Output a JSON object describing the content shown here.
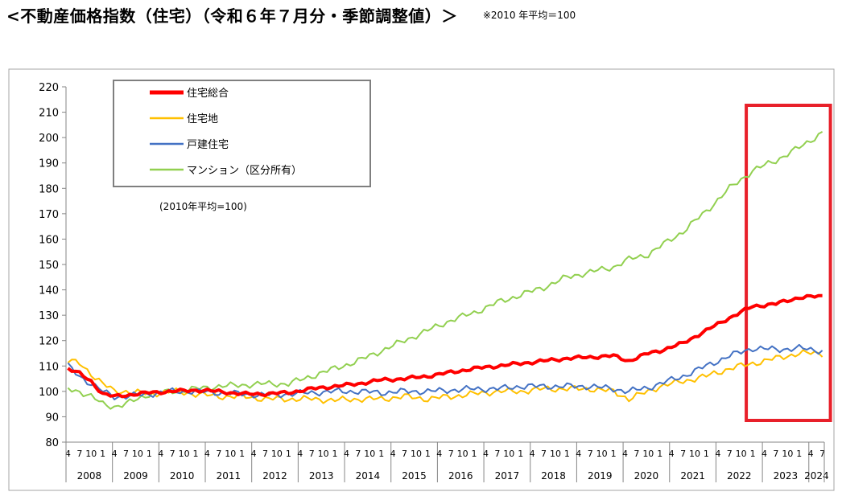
{
  "header": {
    "title": "<不動産価格指数（住宅）（令和６年７月分・季節調整値）＞",
    "base_note": "※2010 年平均＝100"
  },
  "chart_data": {
    "type": "line",
    "title": "<不動産価格指数（住宅）（令和６年７月分・季節調整値）＞",
    "note": "(2010年平均=100)",
    "xlabel": "",
    "ylabel": "",
    "ylim": [
      80,
      220
    ],
    "yticks": [
      80,
      90,
      100,
      110,
      120,
      130,
      140,
      150,
      160,
      170,
      180,
      190,
      200,
      210,
      220
    ],
    "x_start": "2008-04",
    "x_end": "2024-07",
    "month_tick_labels": [
      "4",
      "7",
      "10",
      "1"
    ],
    "years": [
      "2008",
      "2009",
      "2010",
      "2011",
      "2012",
      "2013",
      "2014",
      "2015",
      "2016",
      "2017",
      "2018",
      "2019",
      "2020",
      "2021",
      "2022",
      "2023",
      "2024"
    ],
    "grid": false,
    "legend_position": "top-left",
    "highlight": {
      "from": "2023-01",
      "to": "2024-07",
      "color": "#e8202a"
    },
    "series": [
      {
        "name": "住宅総合",
        "color": "#ff0000",
        "width": 4,
        "keypoints": [
          [
            "2008-04",
            109
          ],
          [
            "2008-07",
            107
          ],
          [
            "2008-10",
            104
          ],
          [
            "2009-01",
            99
          ],
          [
            "2009-04",
            98
          ],
          [
            "2009-07",
            98.5
          ],
          [
            "2010-01",
            99.5
          ],
          [
            "2010-07",
            100
          ],
          [
            "2011-01",
            100.5
          ],
          [
            "2011-07",
            100
          ],
          [
            "2012-01",
            99
          ],
          [
            "2012-07",
            99
          ],
          [
            "2013-01",
            99.5
          ],
          [
            "2013-07",
            101
          ],
          [
            "2014-01",
            102
          ],
          [
            "2014-07",
            103
          ],
          [
            "2015-01",
            104.5
          ],
          [
            "2015-07",
            105
          ],
          [
            "2016-01",
            106
          ],
          [
            "2016-07",
            107.5
          ],
          [
            "2017-01",
            109
          ],
          [
            "2017-07",
            110
          ],
          [
            "2018-01",
            111
          ],
          [
            "2018-07",
            112
          ],
          [
            "2019-01",
            113
          ],
          [
            "2019-07",
            113.5
          ],
          [
            "2020-01",
            114
          ],
          [
            "2020-05",
            112
          ],
          [
            "2020-10",
            115
          ],
          [
            "2021-01",
            116
          ],
          [
            "2021-07",
            119
          ],
          [
            "2022-01",
            124
          ],
          [
            "2022-07",
            129
          ],
          [
            "2023-01",
            133.5
          ],
          [
            "2023-07",
            134.5
          ],
          [
            "2024-01",
            137
          ],
          [
            "2024-07",
            137.5
          ]
        ]
      },
      {
        "name": "住宅地",
        "color": "#ffc000",
        "width": 2,
        "keypoints": [
          [
            "2008-04",
            112
          ],
          [
            "2008-07",
            111
          ],
          [
            "2008-10",
            107
          ],
          [
            "2009-01",
            103
          ],
          [
            "2009-04",
            100
          ],
          [
            "2009-07",
            100
          ],
          [
            "2010-01",
            99
          ],
          [
            "2010-07",
            100
          ],
          [
            "2011-01",
            99
          ],
          [
            "2011-07",
            98
          ],
          [
            "2012-01",
            98
          ],
          [
            "2012-07",
            97
          ],
          [
            "2013-01",
            97
          ],
          [
            "2013-07",
            97
          ],
          [
            "2014-01",
            96.5
          ],
          [
            "2014-07",
            97
          ],
          [
            "2015-01",
            97
          ],
          [
            "2015-07",
            98
          ],
          [
            "2016-01",
            97
          ],
          [
            "2016-07",
            98
          ],
          [
            "2017-01",
            99
          ],
          [
            "2017-07",
            100
          ],
          [
            "2018-01",
            100
          ],
          [
            "2018-07",
            101
          ],
          [
            "2019-01",
            101
          ],
          [
            "2019-07",
            101
          ],
          [
            "2020-01",
            100
          ],
          [
            "2020-05",
            97
          ],
          [
            "2020-10",
            100
          ],
          [
            "2021-01",
            102
          ],
          [
            "2021-07",
            104
          ],
          [
            "2022-01",
            106
          ],
          [
            "2022-07",
            109
          ],
          [
            "2023-01",
            111
          ],
          [
            "2023-07",
            113
          ],
          [
            "2024-01",
            115
          ],
          [
            "2024-07",
            115
          ]
        ]
      },
      {
        "name": "戸建住宅",
        "color": "#4472c4",
        "width": 2,
        "keypoints": [
          [
            "2008-04",
            110
          ],
          [
            "2008-07",
            106
          ],
          [
            "2008-10",
            103
          ],
          [
            "2009-01",
            100
          ],
          [
            "2009-04",
            98
          ],
          [
            "2009-07",
            98
          ],
          [
            "2010-01",
            99
          ],
          [
            "2010-07",
            100
          ],
          [
            "2011-01",
            100
          ],
          [
            "2011-07",
            99.5
          ],
          [
            "2012-01",
            99
          ],
          [
            "2012-07",
            98.5
          ],
          [
            "2013-01",
            99
          ],
          [
            "2013-07",
            99.5
          ],
          [
            "2014-01",
            100
          ],
          [
            "2014-07",
            100
          ],
          [
            "2015-01",
            99.5
          ],
          [
            "2015-07",
            100
          ],
          [
            "2016-01",
            100
          ],
          [
            "2016-07",
            100.5
          ],
          [
            "2017-01",
            101
          ],
          [
            "2017-07",
            101
          ],
          [
            "2018-01",
            102
          ],
          [
            "2018-07",
            102
          ],
          [
            "2019-01",
            102
          ],
          [
            "2019-07",
            102
          ],
          [
            "2020-01",
            101
          ],
          [
            "2020-05",
            100
          ],
          [
            "2020-10",
            101.5
          ],
          [
            "2021-01",
            103
          ],
          [
            "2021-07",
            106
          ],
          [
            "2022-01",
            110
          ],
          [
            "2022-07",
            114
          ],
          [
            "2023-01",
            117
          ],
          [
            "2023-07",
            116.5
          ],
          [
            "2024-01",
            117
          ],
          [
            "2024-07",
            116
          ]
        ]
      },
      {
        "name": "マンション（区分所有）",
        "color": "#92d050",
        "width": 2,
        "keypoints": [
          [
            "2008-04",
            101
          ],
          [
            "2008-07",
            100
          ],
          [
            "2008-10",
            98
          ],
          [
            "2009-01",
            95
          ],
          [
            "2009-04",
            94
          ],
          [
            "2009-07",
            95
          ],
          [
            "2010-01",
            99
          ],
          [
            "2010-07",
            100
          ],
          [
            "2011-01",
            101
          ],
          [
            "2011-07",
            102
          ],
          [
            "2012-01",
            102.5
          ],
          [
            "2012-07",
            103
          ],
          [
            "2013-01",
            103
          ],
          [
            "2013-07",
            106
          ],
          [
            "2014-01",
            109
          ],
          [
            "2014-07",
            112
          ],
          [
            "2015-01",
            116
          ],
          [
            "2015-07",
            120
          ],
          [
            "2016-01",
            124
          ],
          [
            "2016-07",
            128
          ],
          [
            "2017-01",
            131
          ],
          [
            "2017-07",
            135
          ],
          [
            "2018-01",
            138
          ],
          [
            "2018-07",
            141
          ],
          [
            "2019-01",
            145
          ],
          [
            "2019-07",
            147
          ],
          [
            "2020-01",
            149
          ],
          [
            "2020-05",
            152
          ],
          [
            "2020-10",
            154
          ],
          [
            "2021-01",
            157
          ],
          [
            "2021-07",
            163
          ],
          [
            "2022-01",
            171
          ],
          [
            "2022-07",
            180
          ],
          [
            "2023-01",
            187
          ],
          [
            "2023-07",
            191
          ],
          [
            "2024-01",
            196
          ],
          [
            "2024-07",
            202
          ]
        ]
      }
    ]
  }
}
